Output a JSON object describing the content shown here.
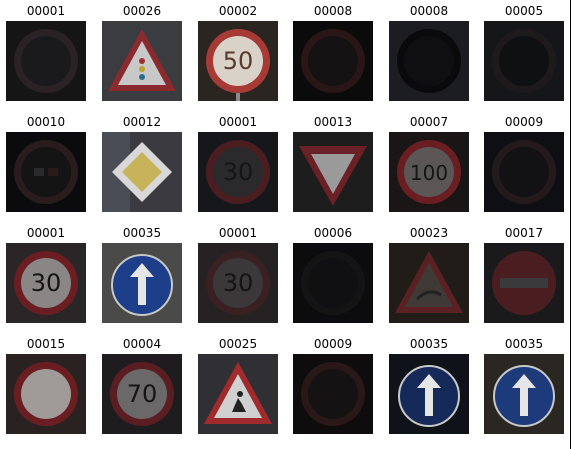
{
  "images": [
    {
      "label": "00001",
      "sign": "dark-circle",
      "bg": "#151516",
      "ring": "#2a2224",
      "face": "#1a1a1c",
      "text": "",
      "dim": 1
    },
    {
      "label": "00026",
      "sign": "triangle-signal",
      "bg": "#3a3c40",
      "ring": "#8a2a2e",
      "face": "#c8c8c8",
      "text": "",
      "dim": 1
    },
    {
      "label": "00002",
      "sign": "speed-limit",
      "bg": "#2a2520",
      "ring": "#a83a36",
      "face": "#d8d2c8",
      "text": "50",
      "dim": 1
    },
    {
      "label": "00008",
      "sign": "dark-circle",
      "bg": "#0c0b0c",
      "ring": "#2a1616",
      "face": "#141212",
      "text": "",
      "dim": 1
    },
    {
      "label": "00008",
      "sign": "dark-circle",
      "bg": "#1c1d22",
      "ring": "#0a0a0c",
      "face": "#0f0f11",
      "text": "",
      "dim": 1
    },
    {
      "label": "00005",
      "sign": "dark-circle",
      "bg": "#15161a",
      "ring": "#1e1a1c",
      "face": "#0f1012",
      "text": "",
      "dim": 1
    },
    {
      "label": "00010",
      "sign": "no-overtaking-dark",
      "bg": "#0b0b0d",
      "ring": "#2a1c1c",
      "face": "#141414",
      "text": "",
      "dim": 1
    },
    {
      "label": "00012",
      "sign": "priority-road",
      "bg": "#3a3a40",
      "ring": "#d8d8d8",
      "face": "#c7b45a",
      "text": "",
      "dim": 1
    },
    {
      "label": "00001",
      "sign": "speed-limit-dark",
      "bg": "#16171a",
      "ring": "#4a1e20",
      "face": "#2a2a2c",
      "text": "30",
      "dim": 1
    },
    {
      "label": "00013",
      "sign": "yield",
      "bg": "#1c1d1c",
      "ring": "#6a2024",
      "face": "#9a9a9a",
      "text": "",
      "dim": 1
    },
    {
      "label": "00007",
      "sign": "speed-limit",
      "bg": "#1a1616",
      "ring": "#6a1e22",
      "face": "#5a5656",
      "text": "100",
      "dim": 1
    },
    {
      "label": "00009",
      "sign": "dark-circle",
      "bg": "#0e0f12",
      "ring": "#241a1c",
      "face": "#121214",
      "text": "",
      "dim": 1
    },
    {
      "label": "00001",
      "sign": "speed-limit",
      "bg": "#2a2628",
      "ring": "#6a1e22",
      "face": "#8a8686",
      "text": "30",
      "dim": 1
    },
    {
      "label": "00035",
      "sign": "ahead-only",
      "bg": "#4a4a48",
      "ring": "#1d3f8a",
      "face": "#1d3f8a",
      "text": "",
      "dim": 1
    },
    {
      "label": "00001",
      "sign": "speed-limit-dark",
      "bg": "#262224",
      "ring": "#3a2022",
      "face": "#3a3838",
      "text": "30",
      "dim": 1
    },
    {
      "label": "00006",
      "sign": "dark-circle",
      "bg": "#0c0c0e",
      "ring": "#151415",
      "face": "#101012",
      "text": "",
      "dim": 1
    },
    {
      "label": "00023",
      "sign": "triangle-dark",
      "bg": "#221c18",
      "ring": "#5a2022",
      "face": "#403a36",
      "text": "",
      "dim": 1
    },
    {
      "label": "00017",
      "sign": "no-entry",
      "bg": "#1a1a1c",
      "ring": "#4a1e20",
      "face": "#3a3a3c",
      "text": "",
      "dim": 1
    },
    {
      "label": "00015",
      "sign": "empty-circle",
      "bg": "#2a2220",
      "ring": "#6a1e22",
      "face": "#a09a98",
      "text": "",
      "dim": 1
    },
    {
      "label": "00004",
      "sign": "speed-limit",
      "bg": "#1e1c1e",
      "ring": "#5a1e22",
      "face": "#6a6868",
      "text": "70",
      "dim": 1
    },
    {
      "label": "00025",
      "sign": "road-work",
      "bg": "#303034",
      "ring": "#a02a2c",
      "face": "#d0d0d0",
      "text": "",
      "dim": 1
    },
    {
      "label": "00009",
      "sign": "dark-circle",
      "bg": "#0e0c0c",
      "ring": "#2a1818",
      "face": "#141212",
      "text": "",
      "dim": 1
    },
    {
      "label": "00035",
      "sign": "ahead-only",
      "bg": "#10121a",
      "ring": "#162a5a",
      "face": "#162a5a",
      "text": "",
      "dim": 1
    },
    {
      "label": "00035",
      "sign": "ahead-only",
      "bg": "#2a2622",
      "ring": "#1d3a7a",
      "face": "#1d3a7a",
      "text": "",
      "dim": 1
    }
  ]
}
